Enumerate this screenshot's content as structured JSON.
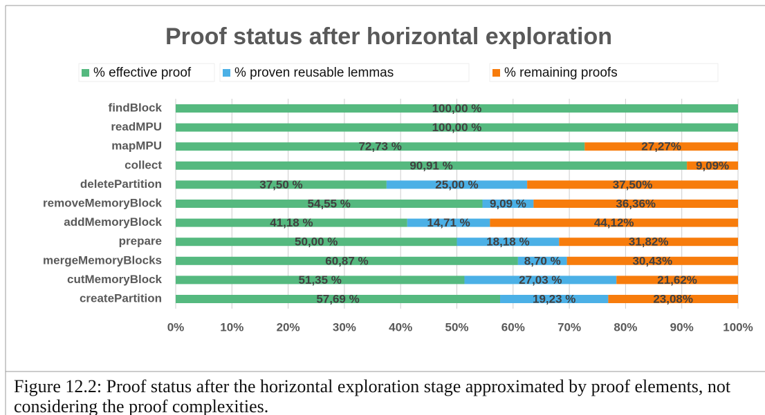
{
  "chart_data": {
    "type": "stacked_barh",
    "title": "Proof status after horizontal exploration",
    "categories": [
      "findBlock",
      "readMPU",
      "mapMPU",
      "collect",
      "deletePartition",
      "removeMemoryBlock",
      "addMemoryBlock",
      "prepare",
      "mergeMemoryBlocks",
      "cutMemoryBlock",
      "createPartition"
    ],
    "series": [
      {
        "name": "% effective proof",
        "color": "#55b97f",
        "values": [
          100,
          100,
          72.73,
          90.91,
          37.5,
          54.55,
          41.18,
          50,
          60.87,
          51.35,
          57.69
        ],
        "value_labels": [
          "100,00 %",
          "100,00 %",
          "72,73 %",
          "90,91 %",
          "37,50 %",
          "54,55 %",
          "41,18 %",
          "50,00 %",
          "60,87 %",
          "51,35 %",
          "57,69 %"
        ]
      },
      {
        "name": "% proven reusable lemmas",
        "color": "#4bb0e6",
        "values": [
          null,
          null,
          null,
          null,
          25,
          9.09,
          14.71,
          18.18,
          8.7,
          27.03,
          19.23
        ],
        "value_labels": [
          null,
          null,
          null,
          null,
          "25,00 %",
          "9,09 %",
          "14,71 %",
          "18,18 %",
          "8,70 %",
          "27,03 %",
          "19,23 %"
        ]
      },
      {
        "name": "% remaining proofs",
        "color": "#f77c0c",
        "values": [
          null,
          null,
          27.27,
          9.09,
          37.5,
          36.36,
          44.12,
          31.82,
          30.43,
          21.62,
          23.08
        ],
        "value_labels": [
          null,
          null,
          "27,27%",
          "9,09%",
          "37,50%",
          "36,36%",
          "44,12%",
          "31,82%",
          "30,43%",
          "21,62%",
          "23,08%"
        ]
      }
    ],
    "xlim": [
      0,
      100
    ],
    "xticks": [
      {
        "value": 0,
        "label": "0%"
      },
      {
        "value": 10,
        "label": "10%"
      },
      {
        "value": 20,
        "label": "20%"
      },
      {
        "value": 30,
        "label": "30%"
      },
      {
        "value": 40,
        "label": "40%"
      },
      {
        "value": 50,
        "label": "50%"
      },
      {
        "value": 60,
        "label": "60%"
      },
      {
        "value": 70,
        "label": "70%"
      },
      {
        "value": 80,
        "label": "80%"
      },
      {
        "value": 90,
        "label": "90%"
      },
      {
        "value": 100,
        "label": "100%"
      }
    ],
    "grid": true,
    "caption": "Figure 12.2: Proof status after the horizontal exploration stage approximated by proof elements, not considering the proof complexities."
  }
}
